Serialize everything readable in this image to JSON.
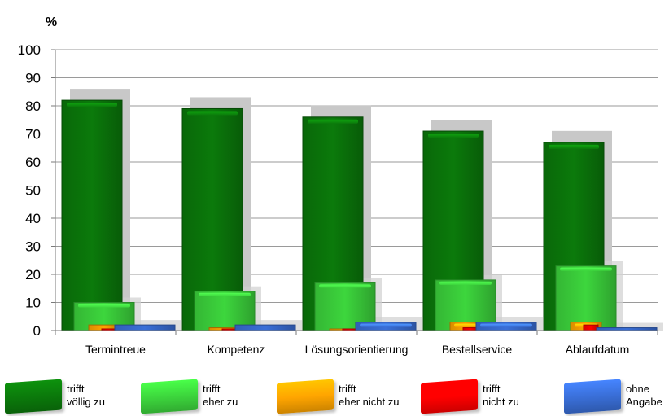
{
  "chart_data": {
    "type": "bar",
    "unit_label": "%",
    "ylim": [
      0,
      100
    ],
    "yticks": [
      0,
      10,
      20,
      30,
      40,
      50,
      60,
      70,
      80,
      90,
      100
    ],
    "grid": true,
    "legend_position": "bottom",
    "categories": [
      "Termintreue",
      "Kompetenz",
      "Lösungsorientierung",
      "Bestellservice",
      "Ablaufdatum"
    ],
    "series": [
      {
        "name": "trifft völlig zu",
        "label_lines": [
          "trifft",
          "völlig zu"
        ],
        "color": "#0b7a0b",
        "values": [
          82,
          79,
          76,
          71,
          67
        ]
      },
      {
        "name": "trifft eher zu",
        "label_lines": [
          "trifft",
          "eher zu"
        ],
        "color": "#3dd63d",
        "values": [
          10,
          14,
          17,
          18,
          23
        ]
      },
      {
        "name": "trifft eher nicht zu",
        "label_lines": [
          "trifft",
          "eher nicht zu"
        ],
        "color": "#ffa500",
        "values": [
          2,
          1,
          0.5,
          3,
          3
        ]
      },
      {
        "name": "trifft nicht zu",
        "label_lines": [
          "trifft",
          "nicht zu"
        ],
        "color": "#ff0000",
        "values": [
          0.5,
          0.3,
          0.3,
          1,
          2
        ]
      },
      {
        "name": "ohne Angabe",
        "label_lines": [
          "ohne",
          "Angabe"
        ],
        "color": "#3a6fd8",
        "values": [
          2,
          2,
          3,
          3,
          1
        ]
      }
    ]
  }
}
